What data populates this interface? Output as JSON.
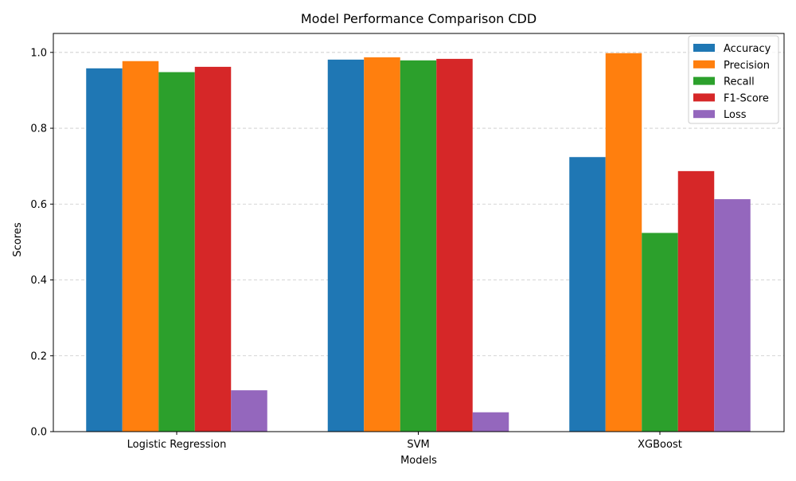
{
  "chart_data": {
    "type": "bar",
    "title": "Model Performance Comparison CDD",
    "xlabel": "Models",
    "ylabel": "Scores",
    "categories": [
      "Logistic Regression",
      "SVM",
      "XGBoost"
    ],
    "ylim": [
      0,
      1.05
    ],
    "yticks": [
      0.0,
      0.2,
      0.4,
      0.6,
      0.8,
      1.0
    ],
    "ytick_labels": [
      "0.0",
      "0.2",
      "0.4",
      "0.6",
      "0.8",
      "1.0"
    ],
    "grid": "y-dashed",
    "legend_position": "top-right",
    "series": [
      {
        "name": "Accuracy",
        "color": "#1f77b4",
        "values": [
          0.958,
          0.981,
          0.724
        ]
      },
      {
        "name": "Precision",
        "color": "#ff7f0e",
        "values": [
          0.977,
          0.987,
          0.998
        ]
      },
      {
        "name": "Recall",
        "color": "#2ca02c",
        "values": [
          0.948,
          0.979,
          0.524
        ]
      },
      {
        "name": "F1-Score",
        "color": "#d62728",
        "values": [
          0.962,
          0.983,
          0.687
        ]
      },
      {
        "name": "Loss",
        "color": "#9467bd",
        "values": [
          0.109,
          0.051,
          0.613
        ]
      }
    ]
  }
}
